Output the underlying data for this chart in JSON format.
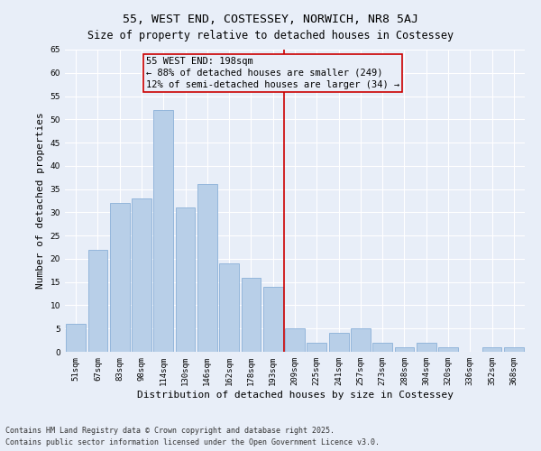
{
  "title": "55, WEST END, COSTESSEY, NORWICH, NR8 5AJ",
  "subtitle": "Size of property relative to detached houses in Costessey",
  "xlabel": "Distribution of detached houses by size in Costessey",
  "ylabel": "Number of detached properties",
  "categories": [
    "51sqm",
    "67sqm",
    "83sqm",
    "98sqm",
    "114sqm",
    "130sqm",
    "146sqm",
    "162sqm",
    "178sqm",
    "193sqm",
    "209sqm",
    "225sqm",
    "241sqm",
    "257sqm",
    "273sqm",
    "288sqm",
    "304sqm",
    "320sqm",
    "336sqm",
    "352sqm",
    "368sqm"
  ],
  "values": [
    6,
    22,
    32,
    33,
    52,
    31,
    36,
    19,
    16,
    14,
    5,
    2,
    4,
    5,
    2,
    1,
    2,
    1,
    0,
    1,
    1
  ],
  "bar_color": "#b8cfe8",
  "bar_edgecolor": "#8ab0d8",
  "bg_color": "#e8eef8",
  "grid_color": "#ffffff",
  "vline_x_index": 9,
  "vline_color": "#cc0000",
  "annotation_text": "55 WEST END: 198sqm\n← 88% of detached houses are smaller (249)\n12% of semi-detached houses are larger (34) →",
  "annotation_box_color": "#cc0000",
  "ylim": [
    0,
    65
  ],
  "yticks": [
    0,
    5,
    10,
    15,
    20,
    25,
    30,
    35,
    40,
    45,
    50,
    55,
    60,
    65
  ],
  "footer1": "Contains HM Land Registry data © Crown copyright and database right 2025.",
  "footer2": "Contains public sector information licensed under the Open Government Licence v3.0.",
  "title_fontsize": 9.5,
  "subtitle_fontsize": 8.5,
  "xlabel_fontsize": 8,
  "ylabel_fontsize": 8,
  "tick_fontsize": 6.5,
  "annotation_fontsize": 7.5,
  "footer_fontsize": 6
}
